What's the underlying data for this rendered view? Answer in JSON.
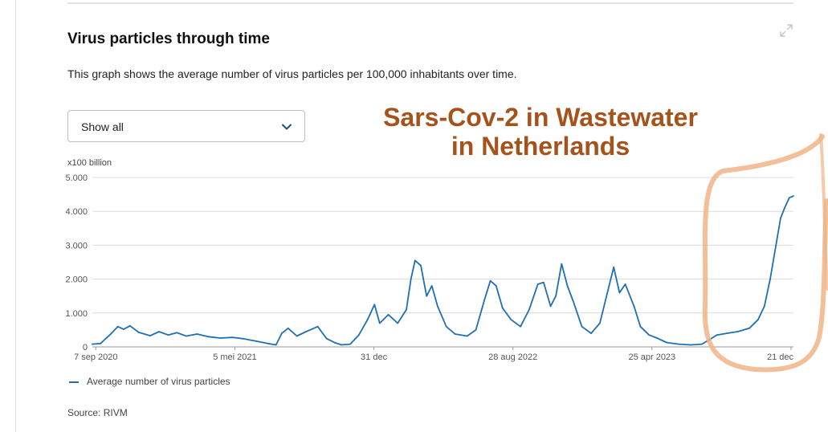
{
  "card": {
    "title": "Virus particles through time",
    "description": "This graph shows the average number of virus particles per 100,000 inhabitants over time.",
    "expand_icon": "expand-icon"
  },
  "filter": {
    "selected": "Show all",
    "icon": "chevron-down-icon"
  },
  "annotation": {
    "line1": "Sars-Cov-2 in Wastewater",
    "line2": "in Netherlands",
    "color": "#a5521b",
    "highlight_color": "#f0b486"
  },
  "legend": {
    "label": "Average number of virus particles",
    "color": "#1f6fb4"
  },
  "source": "Source: RIVM",
  "chart_data": {
    "type": "line",
    "y_unit_label": "x100 billion",
    "y_ticks": [
      "5.000",
      "4.000",
      "3.000",
      "2.000",
      "1.000",
      "0"
    ],
    "y_tick_values": [
      5000,
      4000,
      3000,
      2000,
      1000,
      0
    ],
    "ylim": [
      0,
      5000
    ],
    "x_tick_labels": [
      "7 sep 2020",
      "5 mei 2021",
      "31 dec",
      "28 aug 2022",
      "25 apr 2023",
      "21 dec"
    ],
    "x_tick_dates": [
      "2020-09-07",
      "2021-05-05",
      "2021-12-31",
      "2022-08-28",
      "2023-04-25",
      "2023-12-21"
    ],
    "xlim": [
      "2020-09-01",
      "2023-12-28"
    ],
    "grid": "horizontal",
    "series": [
      {
        "name": "Average number of virus particles",
        "color": "#1f6fb4",
        "points": [
          [
            "2020-09-01",
            80
          ],
          [
            "2020-09-15",
            100
          ],
          [
            "2020-10-01",
            350
          ],
          [
            "2020-10-15",
            600
          ],
          [
            "2020-10-25",
            520
          ],
          [
            "2020-11-05",
            620
          ],
          [
            "2020-11-20",
            430
          ],
          [
            "2020-12-10",
            330
          ],
          [
            "2020-12-25",
            450
          ],
          [
            "2021-01-10",
            350
          ],
          [
            "2021-01-25",
            420
          ],
          [
            "2021-02-10",
            320
          ],
          [
            "2021-03-01",
            380
          ],
          [
            "2021-03-20",
            300
          ],
          [
            "2021-04-10",
            260
          ],
          [
            "2021-05-01",
            280
          ],
          [
            "2021-05-20",
            240
          ],
          [
            "2021-06-10",
            170
          ],
          [
            "2021-07-01",
            100
          ],
          [
            "2021-07-15",
            60
          ],
          [
            "2021-07-25",
            400
          ],
          [
            "2021-08-05",
            550
          ],
          [
            "2021-08-20",
            320
          ],
          [
            "2021-09-05",
            450
          ],
          [
            "2021-09-25",
            600
          ],
          [
            "2021-10-10",
            250
          ],
          [
            "2021-10-25",
            120
          ],
          [
            "2021-11-05",
            60
          ],
          [
            "2021-11-20",
            80
          ],
          [
            "2021-12-05",
            350
          ],
          [
            "2021-12-20",
            800
          ],
          [
            "2022-01-01",
            1250
          ],
          [
            "2022-01-10",
            700
          ],
          [
            "2022-01-25",
            950
          ],
          [
            "2022-02-10",
            700
          ],
          [
            "2022-02-25",
            1100
          ],
          [
            "2022-03-05",
            2000
          ],
          [
            "2022-03-12",
            2550
          ],
          [
            "2022-03-22",
            2400
          ],
          [
            "2022-04-01",
            1500
          ],
          [
            "2022-04-10",
            1800
          ],
          [
            "2022-04-20",
            1200
          ],
          [
            "2022-05-05",
            600
          ],
          [
            "2022-05-20",
            380
          ],
          [
            "2022-06-10",
            320
          ],
          [
            "2022-06-25",
            500
          ],
          [
            "2022-07-10",
            1400
          ],
          [
            "2022-07-20",
            1950
          ],
          [
            "2022-07-30",
            1800
          ],
          [
            "2022-08-10",
            1150
          ],
          [
            "2022-08-25",
            800
          ],
          [
            "2022-09-10",
            600
          ],
          [
            "2022-09-25",
            1100
          ],
          [
            "2022-10-10",
            1850
          ],
          [
            "2022-10-20",
            1900
          ],
          [
            "2022-11-01",
            1200
          ],
          [
            "2022-11-10",
            1500
          ],
          [
            "2022-11-20",
            2450
          ],
          [
            "2022-11-30",
            1800
          ],
          [
            "2022-12-10",
            1350
          ],
          [
            "2022-12-25",
            600
          ],
          [
            "2023-01-10",
            400
          ],
          [
            "2023-01-25",
            700
          ],
          [
            "2023-02-10",
            1800
          ],
          [
            "2023-02-18",
            2350
          ],
          [
            "2023-02-28",
            1600
          ],
          [
            "2023-03-10",
            1850
          ],
          [
            "2023-03-25",
            1200
          ],
          [
            "2023-04-05",
            600
          ],
          [
            "2023-04-20",
            350
          ],
          [
            "2023-05-05",
            250
          ],
          [
            "2023-05-20",
            130
          ],
          [
            "2023-06-10",
            80
          ],
          [
            "2023-07-01",
            60
          ],
          [
            "2023-07-20",
            80
          ],
          [
            "2023-08-01",
            200
          ],
          [
            "2023-08-15",
            350
          ],
          [
            "2023-09-01",
            400
          ],
          [
            "2023-09-20",
            450
          ],
          [
            "2023-10-10",
            550
          ],
          [
            "2023-10-25",
            800
          ],
          [
            "2023-11-05",
            1200
          ],
          [
            "2023-11-15",
            2000
          ],
          [
            "2023-11-25",
            3000
          ],
          [
            "2023-12-03",
            3800
          ],
          [
            "2023-12-10",
            4100
          ],
          [
            "2023-12-18",
            4400
          ],
          [
            "2023-12-25",
            4450
          ]
        ]
      }
    ]
  }
}
